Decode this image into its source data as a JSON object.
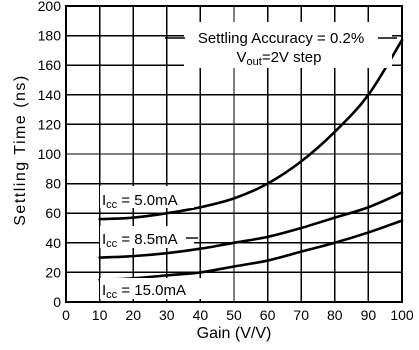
{
  "chart_data": {
    "type": "line",
    "xlabel": "Gain (V/V)",
    "ylabel": "Settling Time (ns)",
    "xlim": [
      0,
      100
    ],
    "ylim": [
      0,
      200
    ],
    "x_ticks": [
      0,
      10,
      20,
      30,
      40,
      50,
      60,
      70,
      80,
      90,
      100
    ],
    "y_ticks": [
      0,
      20,
      40,
      60,
      80,
      100,
      120,
      140,
      160,
      180,
      200
    ],
    "grid": true,
    "annotation": {
      "line1": "Settling Accuracy = 0.2%",
      "line2_prefix": "V",
      "line2_sub": "out",
      "line2_suffix": "=2V step"
    },
    "x": [
      10,
      20,
      30,
      40,
      50,
      60,
      70,
      80,
      90,
      100
    ],
    "series": [
      {
        "label_prefix": "I",
        "label_sub": "cc",
        "label_suffix": " = 5.0mA",
        "values": [
          56,
          57,
          60,
          64,
          70,
          80,
          95,
          115,
          140,
          177
        ]
      },
      {
        "label_prefix": "I",
        "label_sub": "cc",
        "label_suffix": " = 8.5mA",
        "values": [
          30,
          31,
          33,
          36,
          40,
          44,
          50,
          57,
          64,
          74
        ]
      },
      {
        "label_prefix": "I",
        "label_sub": "cc",
        "label_suffix": " = 15.0mA",
        "values": [
          15,
          16,
          18,
          20,
          24,
          28,
          34,
          40,
          47,
          55
        ]
      }
    ]
  }
}
